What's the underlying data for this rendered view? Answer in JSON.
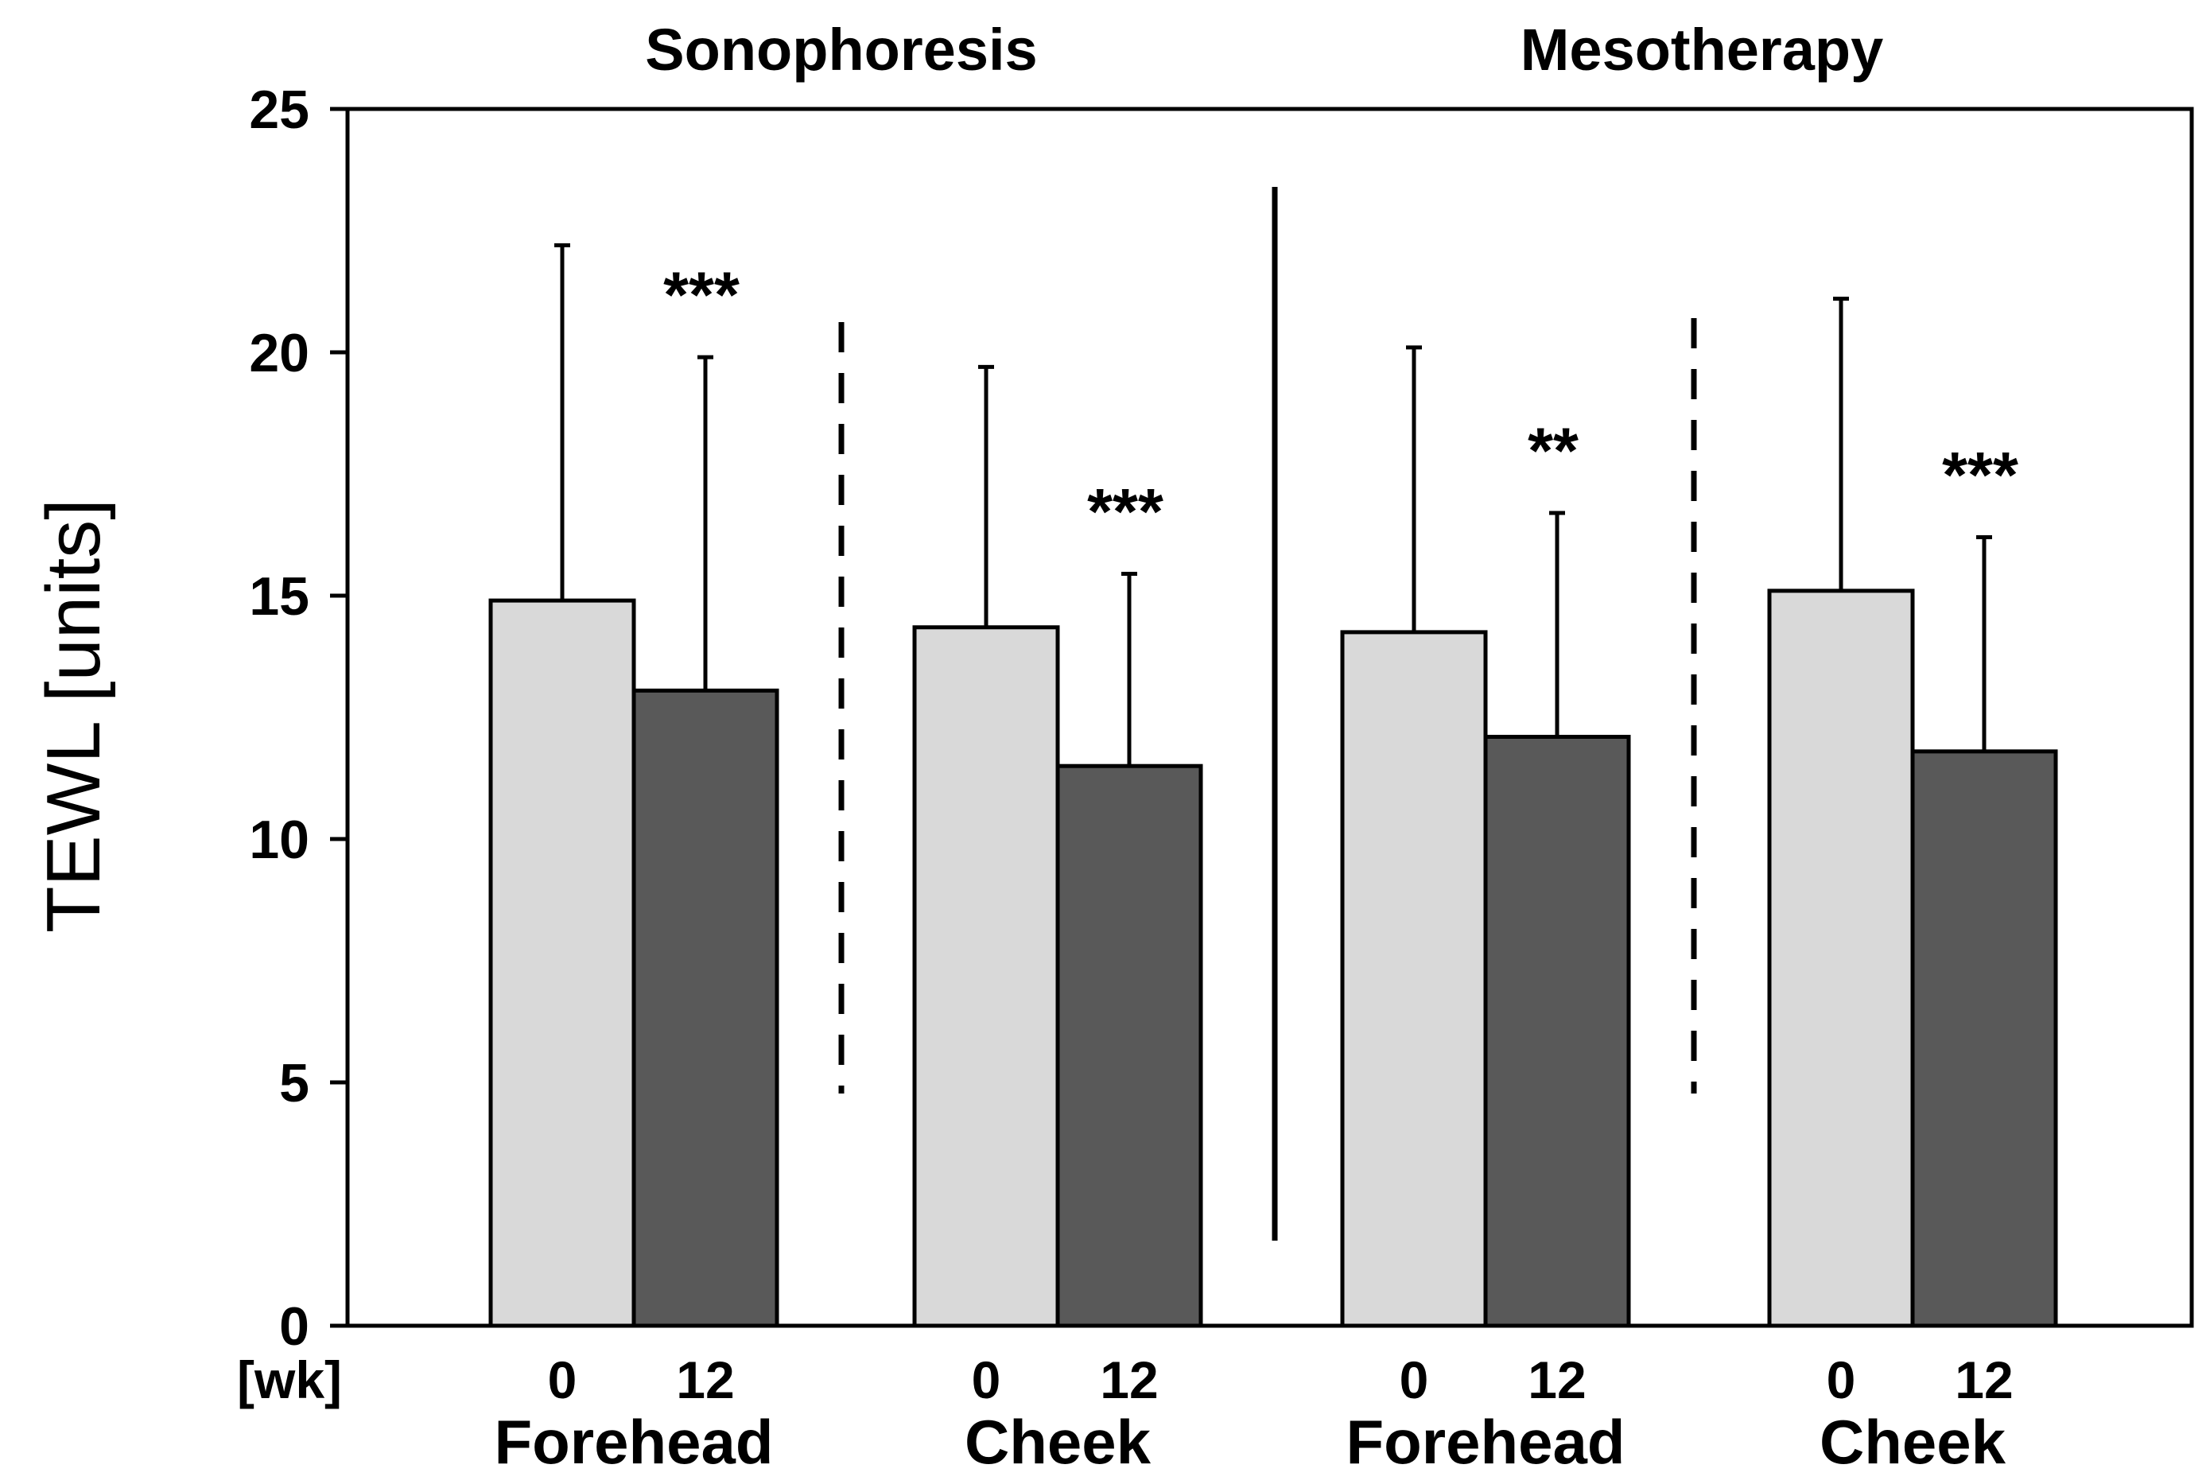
{
  "chart_data": {
    "type": "bar",
    "ylabel": "TEWL [units]",
    "ylim": [
      0,
      25
    ],
    "yticks": [
      "0",
      "5",
      "10",
      "15",
      "20",
      "25"
    ],
    "x_unit_label": "[wk]",
    "group_headers": [
      "Sonophoresis",
      "Mesotherapy"
    ],
    "groups": [
      {
        "method": "Sonophoresis",
        "site": "Forehead",
        "bars": [
          {
            "week": "0",
            "value": 14.9,
            "error_top": 22.2,
            "color": "#d9d9d9"
          },
          {
            "week": "12",
            "value": 13.05,
            "error_top": 19.9,
            "color": "#595959"
          }
        ],
        "significance": "***"
      },
      {
        "method": "Sonophoresis",
        "site": "Cheek",
        "bars": [
          {
            "week": "0",
            "value": 14.35,
            "error_top": 19.7,
            "color": "#d9d9d9"
          },
          {
            "week": "12",
            "value": 11.5,
            "error_top": 15.45,
            "color": "#595959"
          }
        ],
        "significance": "***"
      },
      {
        "method": "Mesotherapy",
        "site": "Forehead",
        "bars": [
          {
            "week": "0",
            "value": 14.25,
            "error_top": 20.1,
            "color": "#d9d9d9"
          },
          {
            "week": "12",
            "value": 12.1,
            "error_top": 16.7,
            "color": "#595959"
          }
        ],
        "significance": "**"
      },
      {
        "method": "Mesotherapy",
        "site": "Cheek",
        "bars": [
          {
            "week": "0",
            "value": 15.1,
            "error_top": 21.1,
            "color": "#d9d9d9"
          },
          {
            "week": "12",
            "value": 11.8,
            "error_top": 16.2,
            "color": "#595959"
          }
        ],
        "significance": "***"
      }
    ]
  }
}
